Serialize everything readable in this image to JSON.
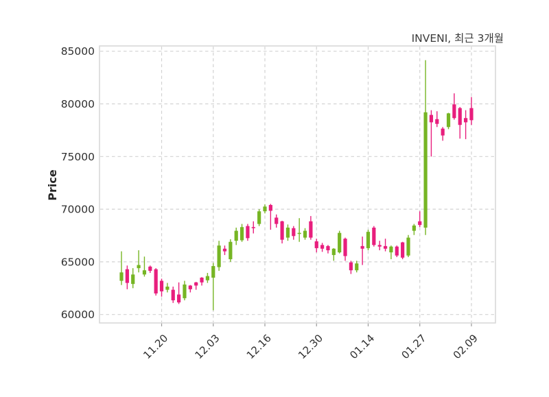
{
  "title": "INVENI, 최근 3개월",
  "axes": {
    "y_label": "Price",
    "y_ticks": [
      "60000",
      "65000",
      "70000",
      "75000",
      "80000",
      "85000"
    ],
    "x_tick_labels": [
      "11.20",
      "12.03",
      "12.16",
      "12.30",
      "01.14",
      "01.27",
      "02.09"
    ]
  },
  "colors": {
    "up": "#76b524",
    "down": "#e81e7d",
    "grid": "#d2d2d2",
    "plot_border": "#d9d9d9",
    "tick_text": "#303030",
    "title_text": "#3a3a3a",
    "background": "#ffffff"
  },
  "chart_data": {
    "type": "candlestick",
    "title": "INVENI, 최근 3개월",
    "xlabel": "",
    "ylabel": "Price",
    "ylim": [
      59200,
      85500
    ],
    "grid": true,
    "legend": "none",
    "up_color": "#76b524",
    "down_color": "#e81e7d",
    "y_tick_values": [
      60000,
      65000,
      70000,
      75000,
      80000,
      85000
    ],
    "x_ticks": [
      {
        "label": "11.20",
        "candle_index": 7
      },
      {
        "label": "12.03",
        "candle_index": 16
      },
      {
        "label": "12.16",
        "candle_index": 25
      },
      {
        "label": "12.30",
        "candle_index": 34
      },
      {
        "label": "01.14",
        "candle_index": 43
      },
      {
        "label": "01.27",
        "candle_index": 52
      },
      {
        "label": "02.09",
        "candle_index": 61
      }
    ],
    "ohlc_order": [
      "open",
      "high",
      "low",
      "close"
    ],
    "candles": [
      [
        63200,
        66000,
        62800,
        64000
      ],
      [
        64300,
        64650,
        62400,
        63000
      ],
      [
        62900,
        64400,
        62500,
        63800
      ],
      [
        64400,
        66100,
        64000,
        64700
      ],
      [
        63800,
        65500,
        63600,
        64200
      ],
      [
        64550,
        64650,
        63950,
        64150
      ],
      [
        64300,
        64400,
        61800,
        62000
      ],
      [
        63200,
        63400,
        61700,
        62200
      ],
      [
        62350,
        63000,
        62100,
        62650
      ],
      [
        62350,
        62650,
        61100,
        61350
      ],
      [
        61900,
        63050,
        61000,
        61150
      ],
      [
        61550,
        63200,
        61350,
        62850
      ],
      [
        62750,
        62800,
        62100,
        62400
      ],
      [
        63050,
        63100,
        62350,
        62750
      ],
      [
        63500,
        63550,
        62750,
        63050
      ],
      [
        63250,
        63950,
        63000,
        63650
      ],
      [
        63500,
        64900,
        60400,
        64600
      ],
      [
        64500,
        67000,
        64150,
        66550
      ],
      [
        66250,
        66550,
        65650,
        66000
      ],
      [
        65250,
        67150,
        65000,
        66900
      ],
      [
        67000,
        68250,
        66600,
        67950
      ],
      [
        67050,
        68600,
        66900,
        68300
      ],
      [
        68400,
        68600,
        67000,
        67250
      ],
      [
        68300,
        68850,
        67700,
        68200
      ],
      [
        68600,
        70000,
        68400,
        69800
      ],
      [
        69800,
        70450,
        69600,
        70250
      ],
      [
        70400,
        70500,
        68050,
        69850
      ],
      [
        69200,
        69500,
        68250,
        68600
      ],
      [
        68850,
        68900,
        66750,
        67100
      ],
      [
        67300,
        68550,
        67000,
        68250
      ],
      [
        68200,
        68400,
        67100,
        67450
      ],
      [
        67650,
        69150,
        66900,
        67750
      ],
      [
        67300,
        68200,
        67100,
        67950
      ],
      [
        68850,
        69350,
        67100,
        67300
      ],
      [
        66950,
        67200,
        65900,
        66300
      ],
      [
        66600,
        66800,
        65950,
        66250
      ],
      [
        66500,
        66600,
        65800,
        66100
      ],
      [
        65650,
        66300,
        65100,
        66250
      ],
      [
        65900,
        67950,
        65800,
        67750
      ],
      [
        67200,
        67300,
        65100,
        65550
      ],
      [
        64950,
        65100,
        63850,
        64200
      ],
      [
        64200,
        65100,
        64000,
        64850
      ],
      [
        66500,
        67400,
        64700,
        66250
      ],
      [
        66300,
        68050,
        66100,
        67850
      ],
      [
        68250,
        68400,
        66450,
        66600
      ],
      [
        66600,
        67000,
        66100,
        66450
      ],
      [
        66500,
        67200,
        66000,
        66250
      ],
      [
        65900,
        66550,
        65250,
        66450
      ],
      [
        66450,
        66550,
        65450,
        65600
      ],
      [
        66850,
        66900,
        65250,
        65400
      ],
      [
        65600,
        67550,
        65450,
        67300
      ],
      [
        67950,
        68600,
        67550,
        68450
      ],
      [
        68850,
        69800,
        68300,
        68500
      ],
      [
        68250,
        84150,
        67550,
        79200
      ],
      [
        78950,
        79400,
        75000,
        78250
      ],
      [
        78550,
        79300,
        77800,
        78100
      ],
      [
        77650,
        77800,
        76500,
        77000
      ],
      [
        77800,
        79150,
        77600,
        79100
      ],
      [
        79950,
        81000,
        78500,
        78650
      ],
      [
        79600,
        79700,
        76700,
        78000
      ],
      [
        78650,
        79400,
        76650,
        78250
      ],
      [
        79600,
        80650,
        78000,
        78450
      ]
    ]
  }
}
